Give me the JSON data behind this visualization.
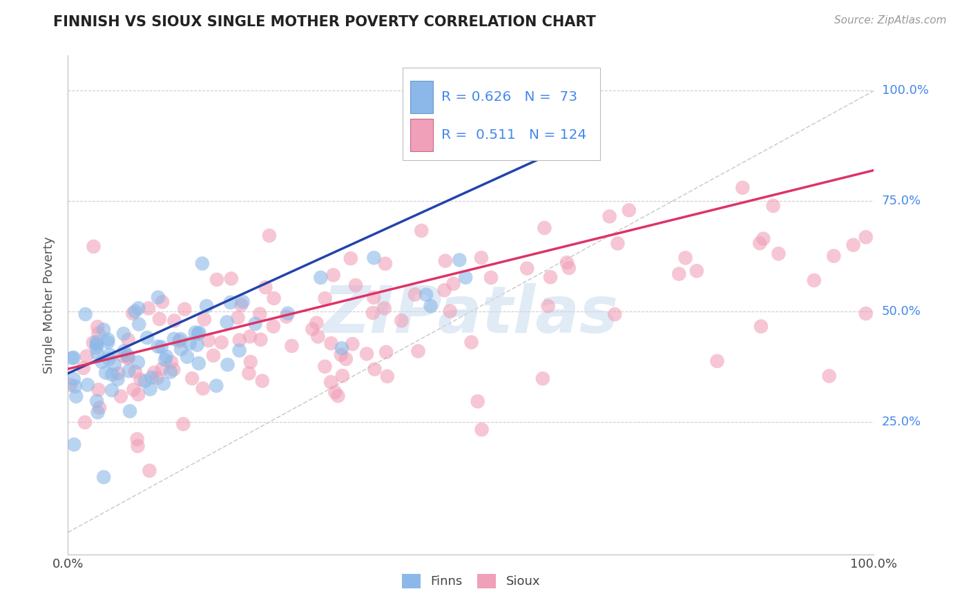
{
  "title": "FINNISH VS SIOUX SINGLE MOTHER POVERTY CORRELATION CHART",
  "source": "Source: ZipAtlas.com",
  "ylabel": "Single Mother Poverty",
  "finns_color": "#8BB8E8",
  "sioux_color": "#F0A0B8",
  "finns_line_color": "#2244AA",
  "sioux_line_color": "#DD3366",
  "finns_R": 0.626,
  "finns_N": 73,
  "sioux_R": 0.511,
  "sioux_N": 124,
  "watermark_text": "ZIPatlas",
  "watermark_color": "#C8DCF0",
  "background_color": "#FFFFFF",
  "grid_color": "#CCCCCC",
  "diag_color": "#BBBBBB",
  "right_label_color": "#4488EE",
  "ytick_vals": [
    0.25,
    0.5,
    0.75,
    1.0
  ],
  "ytick_labels": [
    "25.0%",
    "50.0%",
    "75.0%",
    "100.0%"
  ],
  "ylim_min": -0.05,
  "ylim_max": 1.08,
  "xlim_min": 0.0,
  "xlim_max": 1.0
}
